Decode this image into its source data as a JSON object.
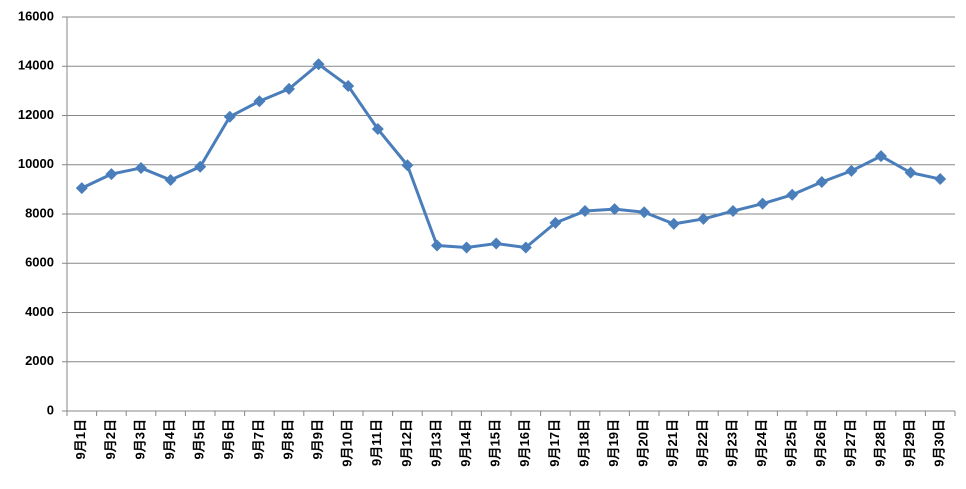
{
  "chart_data": {
    "type": "line",
    "categories": [
      "9月1日",
      "9月2日",
      "9月3日",
      "9月4日",
      "9月5日",
      "9月6日",
      "9月7日",
      "9月8日",
      "9月9日",
      "9月10日",
      "9月11日",
      "9月12日",
      "9月13日",
      "9月14日",
      "9月15日",
      "9月16日",
      "9月17日",
      "9月18日",
      "9月19日",
      "9月20日",
      "9月21日",
      "9月22日",
      "9月23日",
      "9月24日",
      "9月25日",
      "9月26日",
      "9月27日",
      "9月28日",
      "9月29日",
      "9月30日"
    ],
    "series": [
      {
        "color": "#4a7ebb",
        "values": [
          9050,
          9620,
          9870,
          9380,
          9920,
          11950,
          12580,
          13080,
          14080,
          13200,
          11450,
          9980,
          6720,
          6640,
          6800,
          6640,
          7640,
          8120,
          8200,
          8070,
          7600,
          7800,
          8120,
          8420,
          8780,
          9300,
          9750,
          10350,
          9680,
          9420
        ]
      }
    ],
    "ylim": [
      0,
      16000
    ],
    "yticks": [
      0,
      2000,
      4000,
      6000,
      8000,
      10000,
      12000,
      14000,
      16000
    ],
    "grid": true
  }
}
